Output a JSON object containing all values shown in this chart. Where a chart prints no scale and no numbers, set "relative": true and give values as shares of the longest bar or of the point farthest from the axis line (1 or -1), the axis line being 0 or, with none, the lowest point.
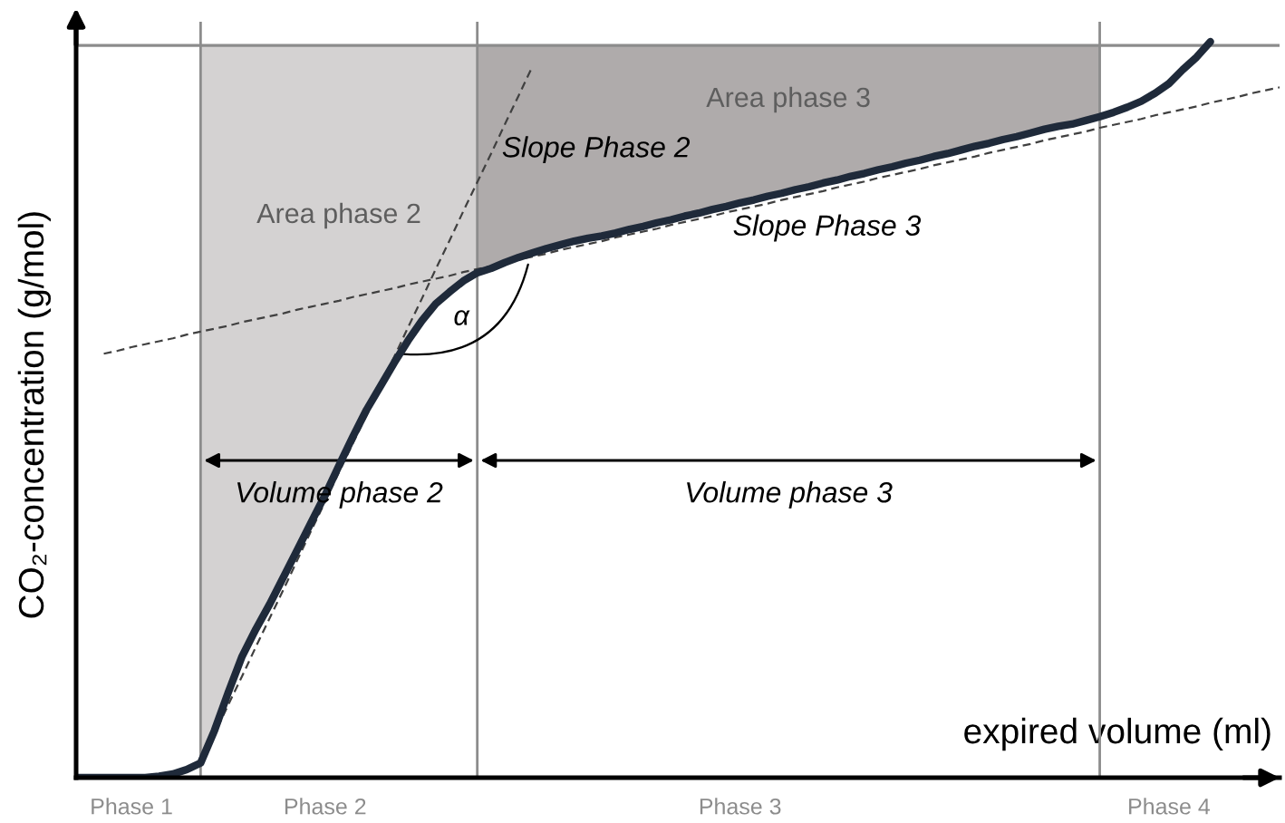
{
  "chart_data": {
    "type": "line",
    "relative": true,
    "xlabel": "expired volume (ml)",
    "ylabel": "CO₂-concentration (g/mol)",
    "tick_labels": "x",
    "categories": [
      null,
      null,
      null,
      null,
      "Phase 1",
      null,
      null,
      null,
      null,
      null,
      null,
      null,
      null,
      null,
      null,
      null,
      null,
      null,
      "Phase 2",
      null,
      null,
      null,
      null,
      null,
      null,
      null,
      null,
      null,
      null,
      null,
      null,
      null,
      null,
      null,
      null,
      null,
      null,
      null,
      null,
      null,
      null,
      null,
      null,
      null,
      null,
      null,
      null,
      null,
      "Phase 3",
      null,
      null,
      null,
      null,
      null,
      null,
      null,
      null,
      null,
      null,
      null,
      null,
      null,
      null,
      null,
      null,
      null,
      null,
      null,
      null,
      null,
      null,
      null,
      null,
      null,
      null,
      null,
      null,
      null,
      null,
      "Phase 4",
      null,
      null,
      null,
      null,
      null,
      null,
      null,
      null
    ],
    "series": [
      {
        "type": "area",
        "name": "Area phase 2",
        "color": "#d4d2d2",
        "values": [
          null,
          null,
          null,
          null,
          null,
          null,
          null,
          null,
          null,
          0.995,
          0.995,
          0.995,
          0.995,
          0.995,
          0.995,
          0.995,
          0.995,
          0.995,
          0.995,
          0.995,
          0.995,
          0.995,
          0.995,
          0.995,
          0.995,
          0.995,
          0.995,
          0.995,
          0.995,
          0.995,
          null,
          null,
          null,
          null,
          null,
          null,
          null,
          null,
          null,
          null,
          null,
          null,
          null,
          null,
          null,
          null,
          null,
          null,
          null,
          null,
          null,
          null,
          null,
          null,
          null,
          null,
          null,
          null,
          null,
          null,
          null,
          null,
          null,
          null,
          null,
          null,
          null,
          null,
          null,
          null,
          null,
          null,
          null,
          null,
          null,
          null,
          null,
          null,
          null,
          null,
          null,
          null,
          null,
          null,
          null,
          null,
          null,
          null
        ]
      },
      {
        "type": "area",
        "name": "Area phase 3",
        "color": "#afabab",
        "values": [
          null,
          null,
          null,
          null,
          null,
          null,
          null,
          null,
          null,
          null,
          null,
          null,
          null,
          null,
          null,
          null,
          null,
          null,
          null,
          null,
          null,
          null,
          null,
          null,
          null,
          null,
          null,
          null,
          null,
          0.995,
          0.995,
          0.995,
          0.995,
          0.995,
          0.995,
          0.995,
          0.995,
          0.995,
          0.995,
          0.995,
          0.995,
          0.995,
          0.995,
          0.995,
          0.995,
          0.995,
          0.995,
          0.995,
          0.995,
          0.995,
          0.995,
          0.995,
          0.995,
          0.995,
          0.995,
          0.995,
          0.995,
          0.995,
          0.995,
          0.995,
          0.995,
          0.995,
          0.995,
          0.995,
          0.995,
          0.995,
          0.995,
          0.995,
          0.995,
          0.995,
          0.995,
          0.995,
          0.995,
          0.995,
          0.995,
          null,
          null,
          null,
          null,
          null,
          null,
          null,
          null,
          null,
          null,
          null,
          null,
          null
        ]
      },
      {
        "name": "Slope Phase 2",
        "color": "#404040",
        "line_style": "dashed",
        "values": [
          null,
          null,
          null,
          null,
          null,
          null,
          null,
          null,
          null,
          0.02,
          0.059,
          0.099,
          0.138,
          0.178,
          0.217,
          0.256,
          0.296,
          0.336,
          0.375,
          0.415,
          0.454,
          0.493,
          0.533,
          0.572,
          0.612,
          0.651,
          0.691,
          0.73,
          0.77,
          0.809,
          0.848,
          0.888,
          0.927,
          0.967,
          null,
          null,
          null,
          null,
          null,
          null,
          null,
          null,
          null,
          null,
          null,
          null,
          null,
          null,
          null,
          null,
          null,
          null,
          null,
          null,
          null,
          null,
          null,
          null,
          null,
          null,
          null,
          null,
          null,
          null,
          null,
          null,
          null,
          null,
          null,
          null,
          null,
          null,
          null,
          null,
          null,
          null,
          null,
          null,
          null,
          null,
          null,
          null,
          null,
          null,
          null,
          null,
          null,
          null
        ]
      },
      {
        "name": "Slope Phase 3",
        "color": "#404040",
        "line_style": "dashed",
        "values": [
          null,
          null,
          0.576,
          0.58,
          0.585,
          0.589,
          0.593,
          0.597,
          0.602,
          0.606,
          0.61,
          0.614,
          0.619,
          0.623,
          0.627,
          0.631,
          0.636,
          0.64,
          0.644,
          0.648,
          0.653,
          0.657,
          0.661,
          0.665,
          0.67,
          0.674,
          0.678,
          0.682,
          0.687,
          0.691,
          0.695,
          0.699,
          0.704,
          0.708,
          0.712,
          0.717,
          0.721,
          0.725,
          0.729,
          0.734,
          0.738,
          0.742,
          0.746,
          0.751,
          0.755,
          0.759,
          0.763,
          0.768,
          0.772,
          0.776,
          0.78,
          0.785,
          0.789,
          0.793,
          0.797,
          0.802,
          0.806,
          0.81,
          0.815,
          0.819,
          0.823,
          0.827,
          0.832,
          0.836,
          0.84,
          0.844,
          0.849,
          0.853,
          0.857,
          0.861,
          0.866,
          0.87,
          0.874,
          0.878,
          0.883,
          0.887,
          0.891,
          0.895,
          0.9,
          0.904,
          0.908,
          0.912,
          0.917,
          0.921,
          0.925,
          0.93,
          0.934,
          0.938
        ]
      },
      {
        "color": "#1f2a3a",
        "values": [
          0,
          0,
          0,
          0,
          0,
          0,
          0.002,
          0.005,
          0.011,
          0.02,
          0.064,
          0.116,
          0.165,
          0.202,
          0.236,
          0.273,
          0.31,
          0.347,
          0.384,
          0.424,
          0.463,
          0.5,
          0.532,
          0.564,
          0.594,
          0.621,
          0.644,
          0.66,
          0.675,
          0.686,
          0.692,
          0.7,
          0.707,
          0.713,
          0.719,
          0.724,
          0.729,
          0.733,
          0.736,
          0.74,
          0.745,
          0.749,
          0.754,
          0.758,
          0.763,
          0.767,
          0.772,
          0.776,
          0.781,
          0.785,
          0.79,
          0.794,
          0.799,
          0.803,
          0.808,
          0.812,
          0.817,
          0.821,
          0.826,
          0.83,
          0.835,
          0.839,
          0.844,
          0.848,
          0.853,
          0.858,
          0.862,
          0.867,
          0.871,
          0.876,
          0.881,
          0.885,
          0.888,
          0.893,
          0.898,
          0.904,
          0.911,
          0.919,
          0.93,
          0.943,
          0.962,
          0.979,
          1.0,
          null,
          null,
          null,
          null,
          null
        ]
      }
    ],
    "ref_lines": [
      {
        "axis": "y",
        "value": 0.995,
        "color": "#8c8c8c"
      }
    ],
    "annotations": [
      "Volume phase 2",
      "Volume phase 3",
      "α"
    ]
  }
}
